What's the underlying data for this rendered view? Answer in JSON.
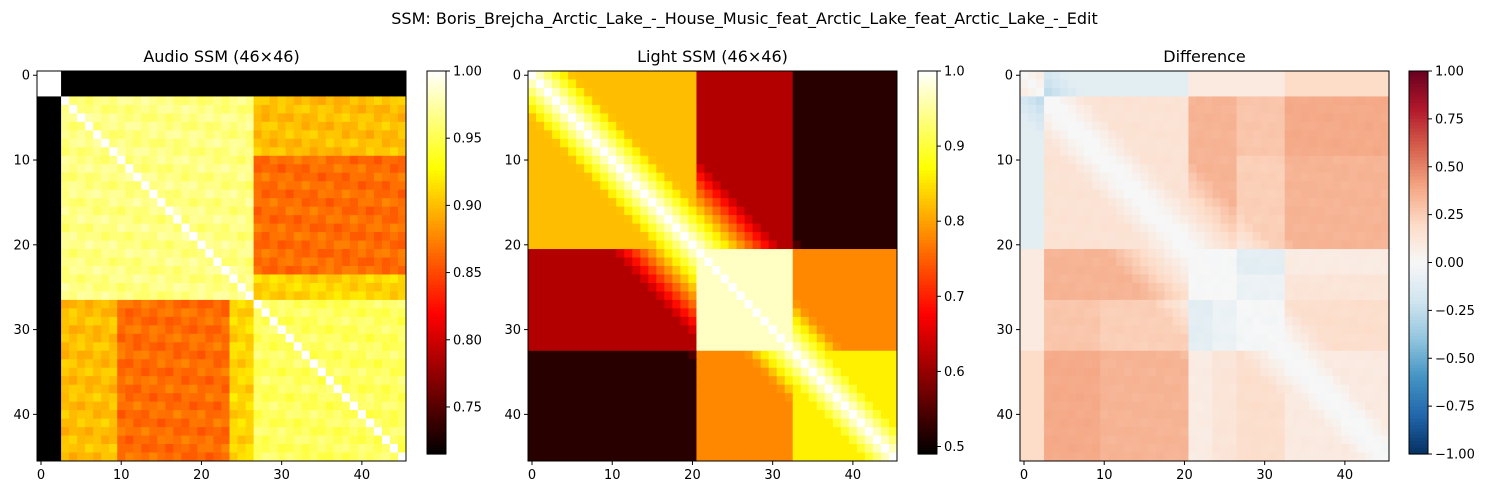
{
  "suptitle": "SSM: Boris_Brejcha_Arctic_Lake_-_House_Music_feat_Arctic_Lake_feat_Arctic_Lake_-_Edit",
  "chart_data": [
    {
      "type": "heatmap",
      "title": "Audio SSM (46×46)",
      "size": 46,
      "colormap": "hot",
      "xticks": [
        "0",
        "10",
        "20",
        "30",
        "40"
      ],
      "yticks": [
        "0",
        "10",
        "20",
        "30",
        "40"
      ],
      "colorbar": {
        "range": [
          0.715,
          1.0
        ],
        "ticks": [
          "1.00",
          "0.95",
          "0.90",
          "0.85",
          "0.80",
          "0.75"
        ],
        "tick_values": [
          1.0,
          0.95,
          0.9,
          0.85,
          0.8,
          0.75
        ]
      },
      "blocks": [
        {
          "rows": [
            0,
            2
          ],
          "cols": [
            0,
            2
          ],
          "value": 1.0
        },
        {
          "rows": [
            0,
            2
          ],
          "cols": [
            3,
            45
          ],
          "value": 0.715
        },
        {
          "rows": [
            3,
            45
          ],
          "cols": [
            0,
            2
          ],
          "value": 0.715
        },
        {
          "rows": [
            3,
            26
          ],
          "cols": [
            3,
            26
          ],
          "value": 0.965
        },
        {
          "rows": [
            27,
            45
          ],
          "cols": [
            27,
            45
          ],
          "value": 0.955
        },
        {
          "rows": [
            10,
            23
          ],
          "cols": [
            27,
            45
          ],
          "value": 0.865
        },
        {
          "rows": [
            27,
            45
          ],
          "cols": [
            10,
            23
          ],
          "value": 0.865
        },
        {
          "rows": [
            3,
            9
          ],
          "cols": [
            27,
            45
          ],
          "value": 0.9
        },
        {
          "rows": [
            27,
            45
          ],
          "cols": [
            3,
            9
          ],
          "value": 0.9
        },
        {
          "rows": [
            24,
            26
          ],
          "cols": [
            27,
            45
          ],
          "value": 0.91
        },
        {
          "rows": [
            27,
            45
          ],
          "cols": [
            24,
            26
          ],
          "value": 0.91
        },
        {
          "rows": [
            1,
            45
          ],
          "cols": [
            1,
            45
          ],
          "diagonal": true,
          "value": 1.0
        }
      ]
    },
    {
      "type": "heatmap",
      "title": "Light SSM (46×46)",
      "size": 46,
      "colormap": "hot",
      "xticks": [
        "0",
        "10",
        "20",
        "30",
        "40"
      ],
      "yticks": [
        "0",
        "10",
        "20",
        "30",
        "40"
      ],
      "colorbar": {
        "range": [
          0.49,
          1.0
        ],
        "ticks": [
          "1.0",
          "0.9",
          "0.8",
          "0.7",
          "0.6",
          "0.5"
        ],
        "tick_values": [
          1.0,
          0.9,
          0.8,
          0.7,
          0.6,
          0.5
        ]
      },
      "segments": [
        {
          "start": 0,
          "end": 20,
          "mean_position": "early"
        },
        {
          "start": 21,
          "end": 32,
          "mean_position": "middle"
        },
        {
          "start": 33,
          "end": 45,
          "mean_position": "late"
        }
      ]
    },
    {
      "type": "heatmap",
      "title": "Difference",
      "size": 46,
      "colormap": "RdBu_r",
      "xticks": [
        "0",
        "10",
        "20",
        "30",
        "40"
      ],
      "yticks": [
        "0",
        "10",
        "20",
        "30",
        "40"
      ],
      "colorbar": {
        "range": [
          -1.0,
          1.0
        ],
        "ticks": [
          "1.00",
          "0.75",
          "0.50",
          "0.25",
          "0.00",
          "−0.25",
          "−0.50",
          "−0.75",
          "−1.00"
        ],
        "tick_values": [
          1.0,
          0.75,
          0.5,
          0.25,
          0.0,
          -0.25,
          -0.5,
          -0.75,
          -1.0
        ]
      },
      "definition": "audio - light"
    }
  ]
}
